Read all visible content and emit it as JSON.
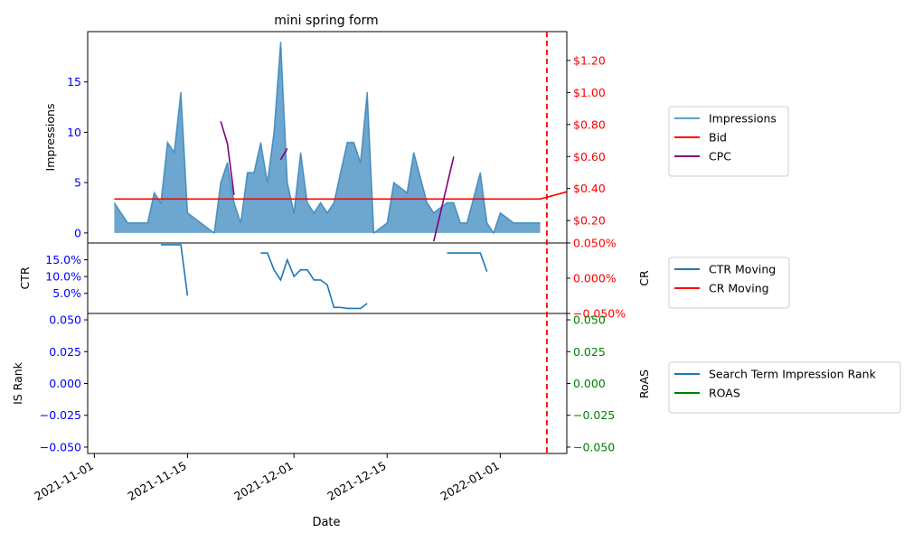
{
  "chart_data": {
    "type": "line",
    "title": "mini spring form",
    "xlabel": "Date",
    "x_ticks": [
      "2021-11-01",
      "2021-11-15",
      "2021-12-01",
      "2021-12-15",
      "2022-01-01"
    ],
    "x_range": [
      "2021-10-31",
      "2022-01-11"
    ],
    "deadline_marker": "2022-01-08",
    "colors": {
      "impressions": "#1f77b4",
      "bid": "#ff0000",
      "cpc": "#800080",
      "ctr": "#1f77b4",
      "cr": "#ff0000",
      "rank": "#1f77b4",
      "roas": "#008000",
      "left_tick": "#0000ff",
      "right_tick": "#ff0000",
      "roas_tick": "#008000"
    },
    "panels": [
      {
        "id": "top",
        "ylabel": "Impressions",
        "y_ticks": [
          0,
          5,
          10,
          15
        ],
        "y_tick_labels": [
          "0",
          "5",
          "10",
          "15"
        ],
        "ylim": [
          -1,
          20
        ],
        "y2lim": [
          0.06,
          1.38
        ],
        "y2_ticks": [
          0.2,
          0.4,
          0.6,
          0.8,
          1.0,
          1.2
        ],
        "y2_tick_labels": [
          "$0.20",
          "$0.40",
          "$0.60",
          "$0.80",
          "$1.00",
          "$1.20"
        ],
        "legend": [
          "Impressions",
          "Bid",
          "CPC"
        ],
        "legend_position": "outside-right",
        "series": [
          {
            "name": "Impressions",
            "kind": "area",
            "axis": "left",
            "points": [
              [
                "2021-11-04",
                3
              ],
              [
                "2021-11-06",
                1
              ],
              [
                "2021-11-09",
                1
              ],
              [
                "2021-11-10",
                4
              ],
              [
                "2021-11-11",
                3
              ],
              [
                "2021-11-12",
                9
              ],
              [
                "2021-11-13",
                8
              ],
              [
                "2021-11-14",
                14
              ],
              [
                "2021-11-15",
                2
              ],
              [
                "2021-11-19",
                0
              ],
              [
                "2021-11-20",
                5
              ],
              [
                "2021-11-21",
                7
              ],
              [
                "2021-11-22",
                3
              ],
              [
                "2021-11-23",
                1
              ],
              [
                "2021-11-24",
                6
              ],
              [
                "2021-11-25",
                6
              ],
              [
                "2021-11-26",
                9
              ],
              [
                "2021-11-27",
                5
              ],
              [
                "2021-11-28",
                10
              ],
              [
                "2021-11-29",
                19
              ],
              [
                "2021-11-30",
                5
              ],
              [
                "2021-12-01",
                2
              ],
              [
                "2021-12-02",
                8
              ],
              [
                "2021-12-03",
                3
              ],
              [
                "2021-12-04",
                2
              ],
              [
                "2021-12-05",
                3
              ],
              [
                "2021-12-06",
                2
              ],
              [
                "2021-12-07",
                3
              ],
              [
                "2021-12-08",
                6
              ],
              [
                "2021-12-09",
                9
              ],
              [
                "2021-12-10",
                9
              ],
              [
                "2021-12-11",
                7
              ],
              [
                "2021-12-12",
                14
              ],
              [
                "2021-12-13",
                0
              ],
              [
                "2021-12-15",
                1
              ],
              [
                "2021-12-16",
                5
              ],
              [
                "2021-12-18",
                4
              ],
              [
                "2021-12-19",
                8
              ],
              [
                "2021-12-21",
                3
              ],
              [
                "2021-12-22",
                2
              ],
              [
                "2021-12-24",
                3
              ],
              [
                "2021-12-25",
                3
              ],
              [
                "2021-12-26",
                1
              ],
              [
                "2021-12-27",
                1
              ],
              [
                "2021-12-29",
                6
              ],
              [
                "2021-12-30",
                1
              ],
              [
                "2021-12-31",
                0
              ],
              [
                "2022-01-01",
                2
              ],
              [
                "2022-01-03",
                1
              ],
              [
                "2022-01-07",
                1
              ]
            ]
          },
          {
            "name": "Bid",
            "kind": "line",
            "axis": "right",
            "points": [
              [
                "2021-11-04",
                0.335
              ],
              [
                "2022-01-07",
                0.335
              ],
              [
                "2022-01-11",
                0.38
              ]
            ]
          },
          {
            "name": "CPC",
            "kind": "line",
            "axis": "right",
            "segments": [
              [
                [
                  "2021-11-20",
                  0.82
                ],
                [
                  "2021-11-21",
                  0.68
                ],
                [
                  "2021-11-22",
                  0.36
                ]
              ],
              [
                [
                  "2021-11-29",
                  0.58
                ],
                [
                  "2021-11-30",
                  0.65
                ]
              ],
              [
                [
                  "2021-12-22",
                  0.07
                ],
                [
                  "2021-12-25",
                  0.6
                ]
              ]
            ]
          }
        ]
      },
      {
        "id": "middle",
        "ylabel": "CTR",
        "y2label": "CR",
        "y_ticks": [
          5,
          10,
          15
        ],
        "y_tick_labels": [
          "5.0%",
          "10.0%",
          "15.0%"
        ],
        "ylim": [
          -1,
          20
        ],
        "y2lim": [
          -0.05,
          0.05
        ],
        "y2_ticks": [
          -0.05,
          0,
          0.05
        ],
        "y2_tick_labels": [
          "−0.050%",
          "0.000%",
          "0.050%"
        ],
        "legend": [
          "CTR Moving",
          "CR Moving"
        ],
        "legend_position": "outside-right",
        "series": [
          {
            "name": "CTR Moving",
            "kind": "line",
            "axis": "left",
            "segments": [
              [
                [
                  "2021-11-11",
                  19.5
                ],
                [
                  "2021-11-14",
                  19.5
                ],
                [
                  "2021-11-15",
                  4.3
                ]
              ],
              [
                [
                  "2021-11-26",
                  17
                ],
                [
                  "2021-11-27",
                  17
                ],
                [
                  "2021-11-28",
                  12
                ],
                [
                  "2021-11-29",
                  9
                ],
                [
                  "2021-11-30",
                  15
                ],
                [
                  "2021-12-01",
                  10
                ],
                [
                  "2021-12-02",
                  12
                ],
                [
                  "2021-12-03",
                  12
                ],
                [
                  "2021-12-04",
                  9
                ],
                [
                  "2021-12-05",
                  9
                ],
                [
                  "2021-12-06",
                  7.5
                ],
                [
                  "2021-12-07",
                  0.8
                ],
                [
                  "2021-12-08",
                  0.8
                ],
                [
                  "2021-12-09",
                  0.5
                ],
                [
                  "2021-12-11",
                  0.5
                ],
                [
                  "2021-12-12",
                  2
                ]
              ],
              [
                [
                  "2021-12-24",
                  17
                ],
                [
                  "2021-12-29",
                  17
                ],
                [
                  "2021-12-30",
                  11.5
                ]
              ]
            ]
          },
          {
            "name": "CR Moving",
            "kind": "line",
            "axis": "right",
            "points": []
          }
        ]
      },
      {
        "id": "bottom",
        "ylabel": "IS Rank",
        "y2label": "RoAS",
        "y_ticks": [
          -0.05,
          -0.025,
          0,
          0.025,
          0.05
        ],
        "y_tick_labels": [
          "−0.050",
          "−0.025",
          "0.000",
          "0.025",
          "0.050"
        ],
        "ylim": [
          -0.055,
          0.055
        ],
        "y2lim": [
          -0.055,
          0.055
        ],
        "y2_ticks": [
          -0.05,
          -0.025,
          0,
          0.025,
          0.05
        ],
        "y2_tick_labels": [
          "−0.050",
          "−0.025",
          "0.000",
          "0.025",
          "0.050"
        ],
        "legend": [
          "Search Term Impression Rank",
          "ROAS"
        ],
        "legend_position": "outside-right",
        "series": [
          {
            "name": "Search Term Impression Rank",
            "kind": "line",
            "axis": "left",
            "points": []
          },
          {
            "name": "ROAS",
            "kind": "line",
            "axis": "right",
            "points": []
          }
        ]
      }
    ]
  }
}
